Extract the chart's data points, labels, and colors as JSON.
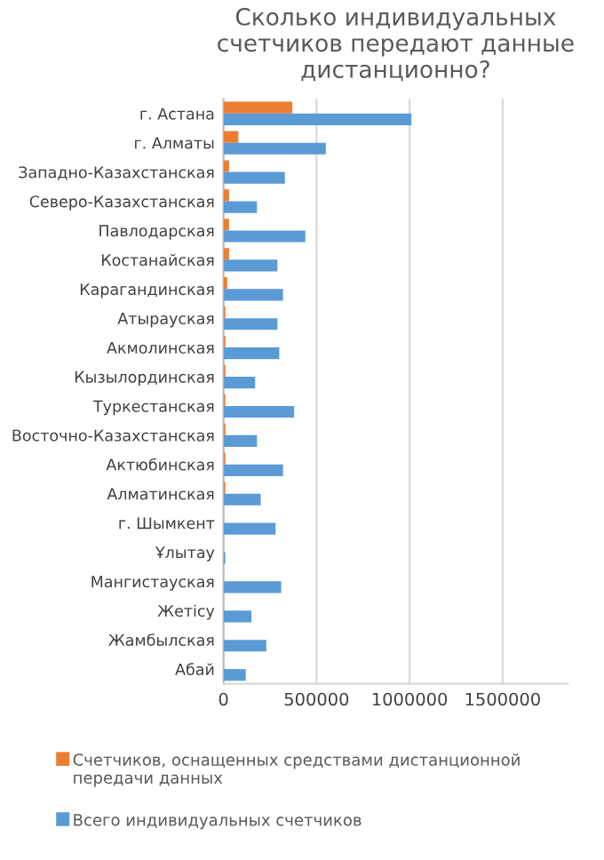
{
  "chart_data": {
    "type": "bar",
    "orientation": "horizontal",
    "title": "Сколько индивидуальных счетчиков передают данные дистанционно?",
    "categories": [
      "г. Астана",
      "г. Алматы",
      "Западно-Казахстанская",
      "Северо-Казахстанская",
      "Павлодарская",
      "Костанайская",
      "Карагандинская",
      "Атырауская",
      "Акмолинская",
      "Кызылординская",
      "Туркестанская",
      "Восточно-Казахстанская",
      "Актюбинская",
      "Алматинская",
      "г. Шымкент",
      "Ұлытау",
      "Мангистауская",
      "Жетісу",
      "Жамбылская",
      "Абай"
    ],
    "series": [
      {
        "name": "Счетчиков, оснащенных средствами дистанционной передачи данных",
        "color": "#ed7d31",
        "values": [
          370000,
          80000,
          30000,
          30000,
          30000,
          30000,
          20000,
          10000,
          10000,
          10000,
          10000,
          10000,
          10000,
          10000,
          0,
          0,
          0,
          0,
          0,
          0
        ]
      },
      {
        "name": "Всего индивидуальных счетчиков",
        "color": "#5b9bd5",
        "values": [
          1010000,
          550000,
          330000,
          180000,
          440000,
          290000,
          320000,
          290000,
          300000,
          170000,
          380000,
          180000,
          320000,
          200000,
          280000,
          10000,
          310000,
          150000,
          230000,
          120000
        ]
      }
    ],
    "xlim": [
      0,
      1850000
    ],
    "xticks": [
      0,
      500000,
      1000000,
      1500000
    ],
    "grid": "x",
    "legend": "bottom"
  }
}
